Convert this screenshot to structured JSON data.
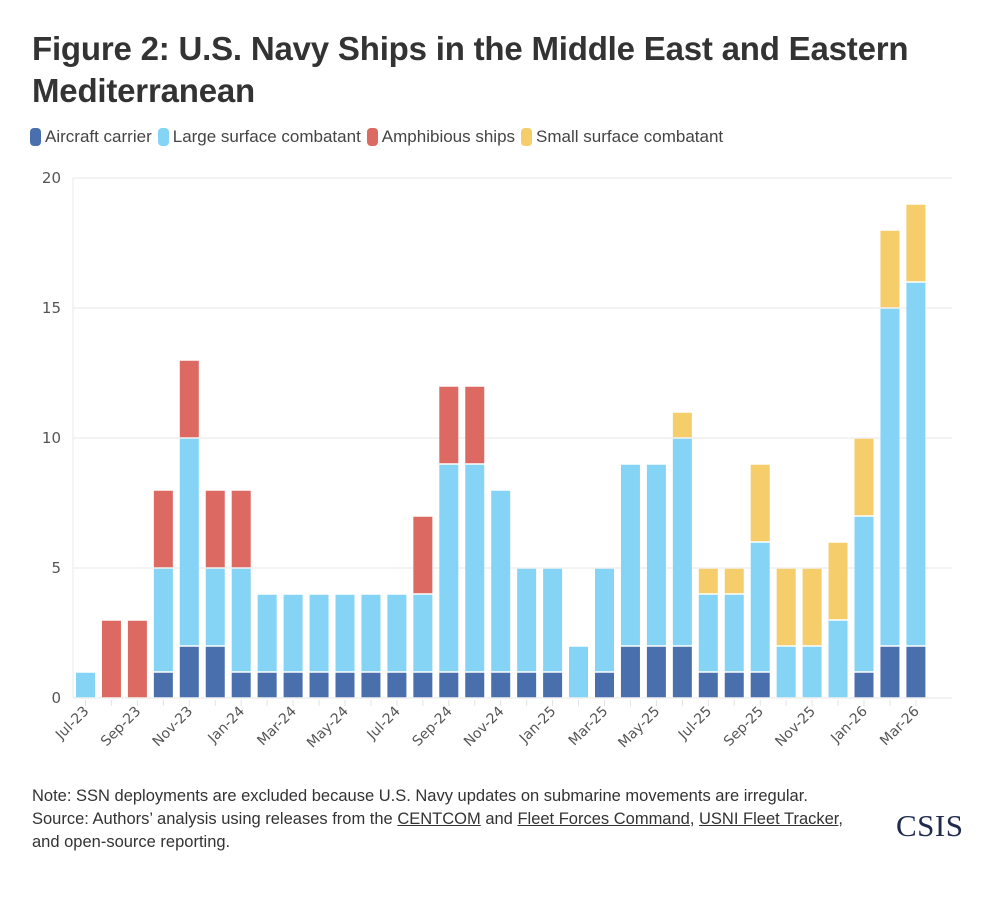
{
  "title": "Figure 2: U.S. Navy Ships in the Middle East and Eastern Mediterranean",
  "legend": [
    {
      "label": "Aircraft carrier",
      "color": "#4a6fad"
    },
    {
      "label": "Large surface combatant",
      "color": "#85d4f5"
    },
    {
      "label": "Amphibious ships",
      "color": "#dc6a63"
    },
    {
      "label": "Small surface combatant",
      "color": "#f5cd6a"
    }
  ],
  "note": {
    "line1": "Note: SSN deployments are excluded because U.S. Navy updates on submarine movements are irregular.",
    "source_prefix": "Source: Authors’ analysis using releases from the ",
    "link_centcom": "CENTCOM",
    "and1": " and ",
    "link_fleet_forces": "Fleet Forces Command",
    "comma": ", ",
    "link_usni": "USNI Fleet Tracker",
    "source_suffix": ", and open-source reporting."
  },
  "logo": "CSIS",
  "chart_data": {
    "type": "bar",
    "stacked": true,
    "title": "Figure 2: U.S. Navy Ships in the Middle East and Eastern Mediterranean",
    "xlabel": "",
    "ylabel": "",
    "ylim": [
      0,
      20
    ],
    "yticks": [
      0,
      5,
      10,
      15,
      20
    ],
    "grid": true,
    "legend_position": "top-left",
    "categories": [
      "Jul-23",
      "Aug-23",
      "Sep-23",
      "Oct-23",
      "Nov-23",
      "Dec-23",
      "Jan-24",
      "Feb-24",
      "Mar-24",
      "Apr-24",
      "May-24",
      "Jun-24",
      "Jul-24",
      "Aug-24",
      "Sep-24",
      "Oct-24",
      "Nov-24",
      "Dec-24",
      "Jan-25",
      "Feb-25",
      "Mar-25",
      "Apr-25",
      "May-25",
      "Jun-25",
      "Jul-25",
      "Aug-25",
      "Sep-25",
      "Oct-25",
      "Nov-25",
      "Dec-25",
      "Jan-26",
      "Feb-26",
      "Mar-26"
    ],
    "xtick_labels": [
      "Jul-23",
      "Sep-23",
      "Nov-23",
      "Jan-24",
      "Mar-24",
      "May-24",
      "Jul-24",
      "Sep-24",
      "Nov-24",
      "Jan-25",
      "Mar-25",
      "May-25",
      "Jul-25",
      "Sep-25",
      "Nov-25",
      "Jan-26",
      "Mar-26"
    ],
    "series": [
      {
        "name": "Aircraft carrier",
        "color": "#4a6fad",
        "values": [
          0,
          0,
          0,
          1,
          2,
          2,
          1,
          1,
          1,
          1,
          1,
          1,
          1,
          1,
          1,
          1,
          1,
          1,
          1,
          0,
          1,
          2,
          2,
          2,
          1,
          1,
          1,
          0,
          0,
          0,
          1,
          2,
          2
        ]
      },
      {
        "name": "Large surface combatant",
        "color": "#85d4f5",
        "values": [
          1,
          0,
          0,
          4,
          8,
          3,
          4,
          3,
          3,
          3,
          3,
          3,
          3,
          3,
          8,
          8,
          7,
          4,
          4,
          2,
          4,
          7,
          7,
          8,
          3,
          3,
          5,
          2,
          2,
          3,
          6,
          13,
          14
        ]
      },
      {
        "name": "Amphibious ships",
        "color": "#dc6a63",
        "values": [
          0,
          3,
          3,
          3,
          3,
          3,
          3,
          0,
          0,
          0,
          0,
          0,
          0,
          3,
          3,
          3,
          0,
          0,
          0,
          0,
          0,
          0,
          0,
          0,
          0,
          0,
          0,
          0,
          0,
          0,
          0,
          0,
          0
        ]
      },
      {
        "name": "Small surface combatant",
        "color": "#f5cd6a",
        "values": [
          0,
          0,
          0,
          0,
          0,
          0,
          0,
          0,
          0,
          0,
          0,
          0,
          0,
          0,
          0,
          0,
          0,
          0,
          0,
          0,
          0,
          0,
          0,
          1,
          1,
          1,
          3,
          3,
          3,
          3,
          3,
          3,
          3
        ]
      }
    ]
  }
}
